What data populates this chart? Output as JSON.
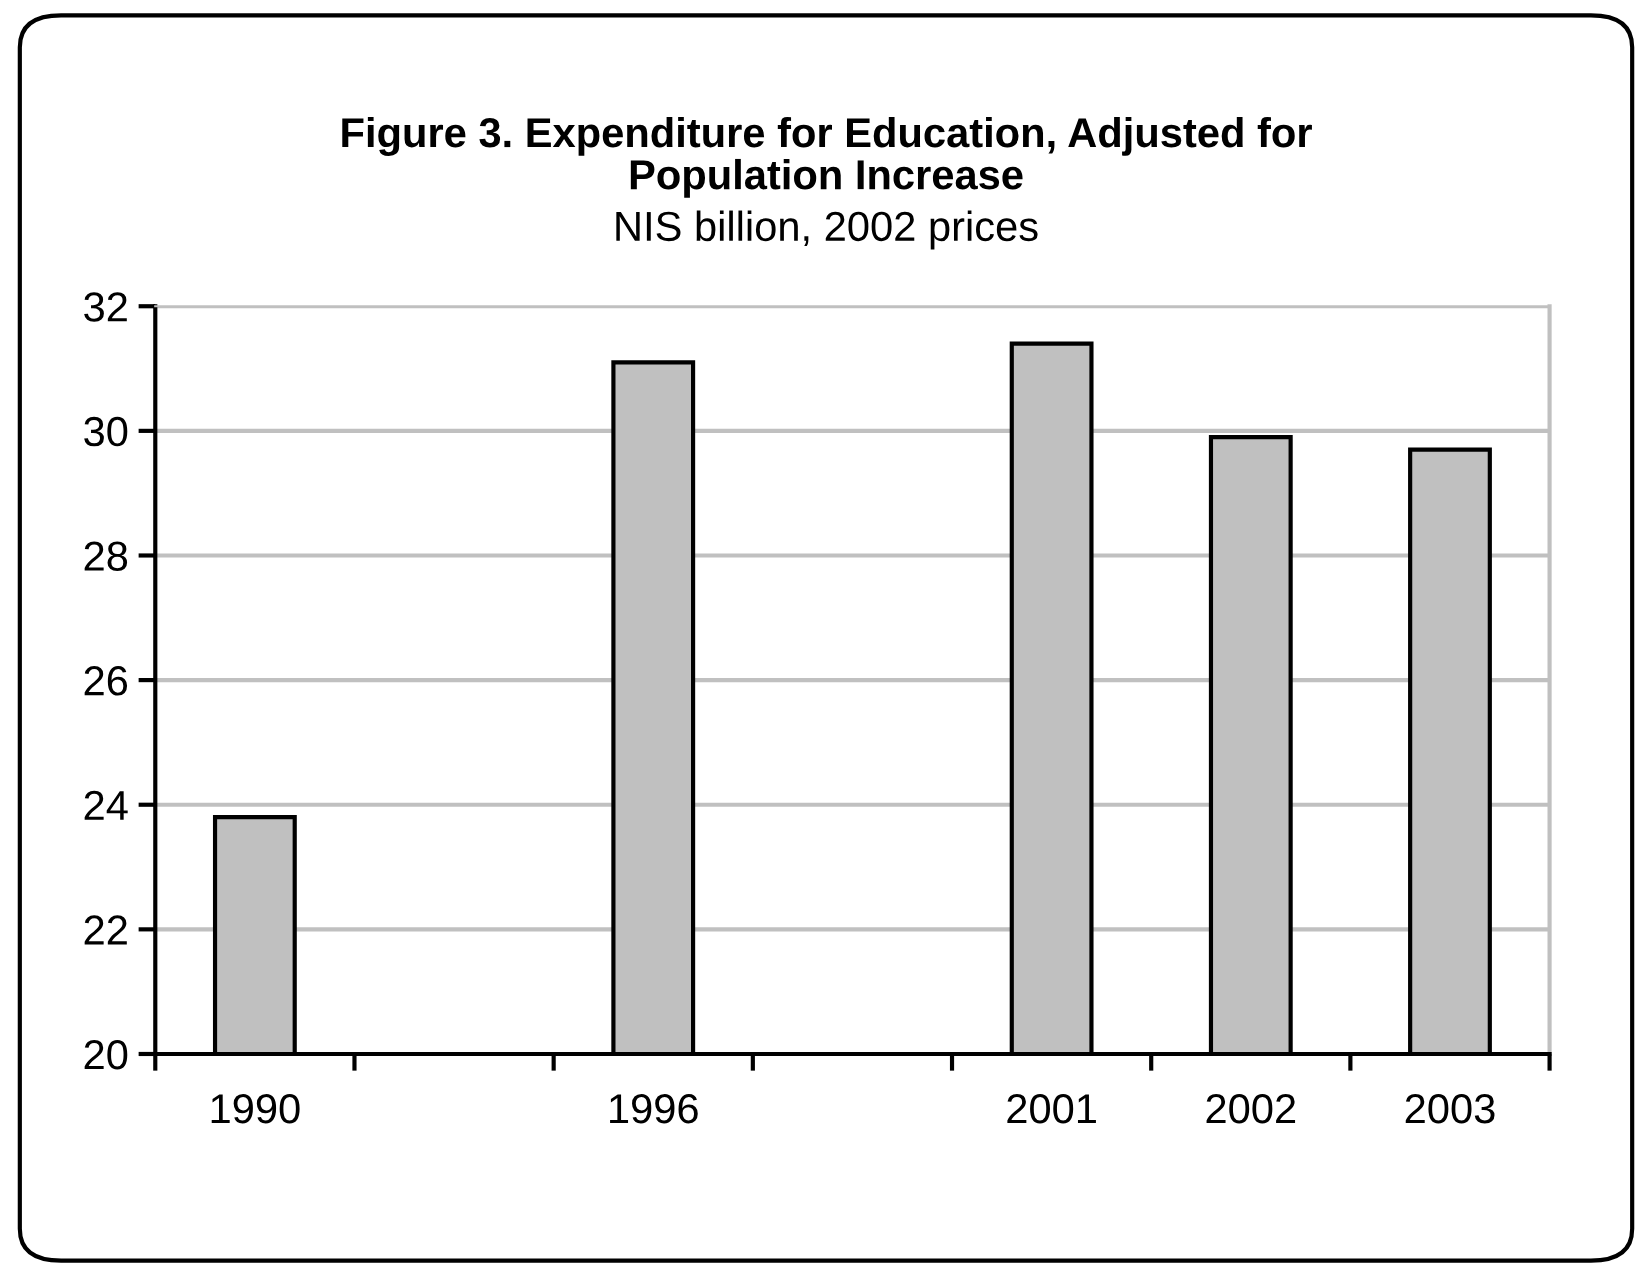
{
  "chart_data": {
    "type": "bar",
    "title": "Figure 3. Expenditure for Education, Adjusted for\nPopulation Increase",
    "subtitle": "NIS billion, 2002 prices",
    "categories": [
      "1990",
      null,
      "1996",
      null,
      "2001",
      "2002",
      "2003"
    ],
    "values": [
      23.8,
      null,
      31.1,
      null,
      31.4,
      29.9,
      29.7
    ],
    "color": "#c0c0c0",
    "ylim": [
      20,
      32
    ],
    "yticks": [
      20,
      22,
      24,
      26,
      28,
      30,
      32
    ],
    "grid": "y"
  }
}
